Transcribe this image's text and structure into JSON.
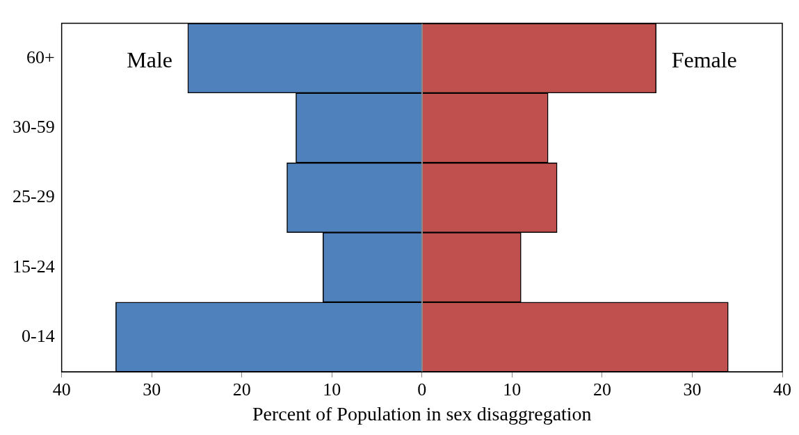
{
  "chart_data": {
    "type": "bar",
    "orientation": "horizontal",
    "stacked": true,
    "xlabel": "Percent of Population in sex disaggregation",
    "categories": [
      "60+",
      "30-59",
      "25-29",
      "15-24",
      "0-14"
    ],
    "series": [
      {
        "name": "Male",
        "color": "#4f81bd",
        "values": [
          -26,
          -14,
          -15,
          -11,
          -34
        ]
      },
      {
        "name": "Female",
        "color": "#c0504d",
        "values": [
          26,
          14,
          15,
          11,
          34
        ]
      }
    ],
    "xlim": [
      -40,
      40
    ],
    "xticks": [
      {
        "value": -40,
        "label": "40"
      },
      {
        "value": -30,
        "label": "30"
      },
      {
        "value": -20,
        "label": "20"
      },
      {
        "value": -10,
        "label": "10"
      },
      0,
      10,
      20,
      30,
      40
    ],
    "ref_lines": [
      {
        "axis": "x",
        "value": 0,
        "color": "#888888"
      }
    ],
    "grid": false,
    "legend": false
  }
}
